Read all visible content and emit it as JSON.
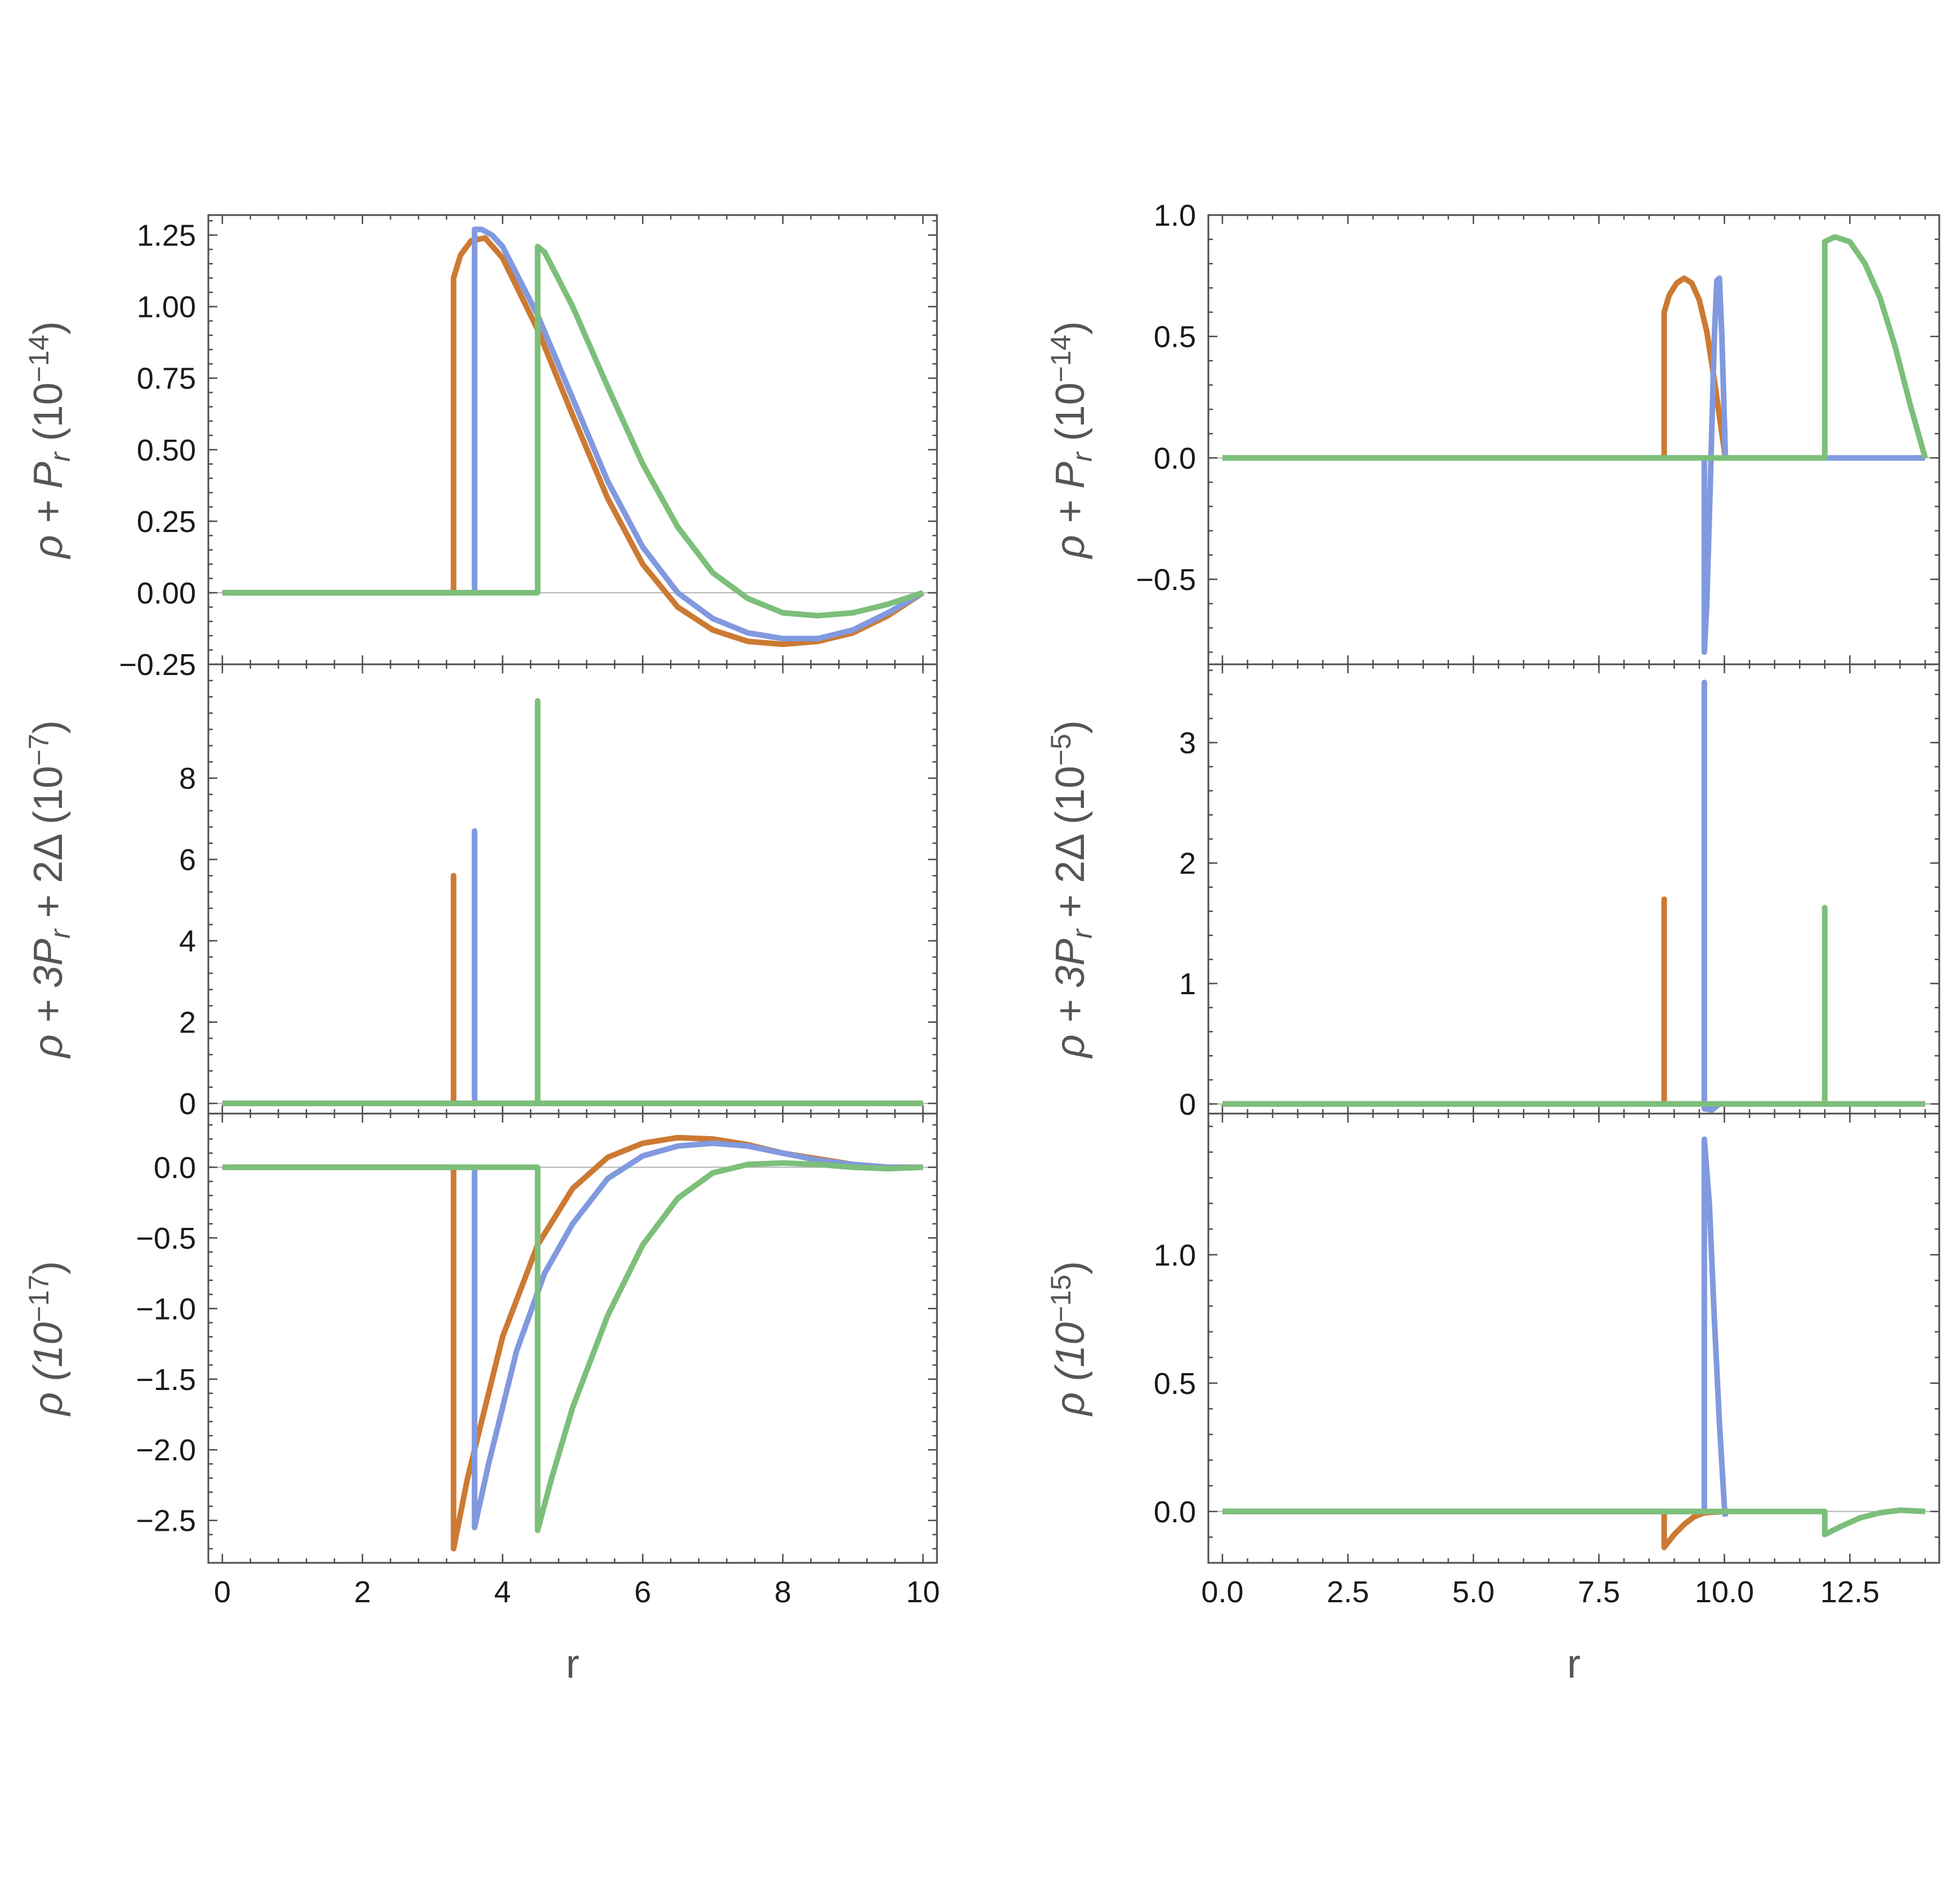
{
  "colors": {
    "series_1": "#cc7a33",
    "series_2": "#8199de",
    "series_3": "#7cbf7a"
  },
  "chart_data": [
    {
      "id": "left-top",
      "type": "line",
      "ylabel": "ρ + P_r (10^−14)",
      "xlim": [
        -0.2,
        10.2
      ],
      "ylim": [
        -0.25,
        1.32
      ],
      "xticks": [
        0,
        2,
        4,
        6,
        8,
        10
      ],
      "xticklabels": [
        "0",
        "2",
        "4",
        "6",
        "8",
        "10"
      ],
      "show_xticklabels": false,
      "yticks": [
        -0.25,
        0,
        0.25,
        0.5,
        0.75,
        1,
        1.25
      ],
      "yticklabels": [
        "−0.25",
        "0.00",
        "0.25",
        "0.50",
        "0.75",
        "1.00",
        "1.25"
      ],
      "series": [
        {
          "color": "series_1",
          "points": [
            [
              0,
              0
            ],
            [
              3.3,
              0
            ],
            [
              3.3,
              1.1
            ],
            [
              3.4,
              1.18
            ],
            [
              3.55,
              1.23
            ],
            [
              3.75,
              1.24
            ],
            [
              4.0,
              1.17
            ],
            [
              4.5,
              0.92
            ],
            [
              5,
              0.62
            ],
            [
              5.5,
              0.33
            ],
            [
              6,
              0.1
            ],
            [
              6.5,
              -0.05
            ],
            [
              7,
              -0.13
            ],
            [
              7.5,
              -0.17
            ],
            [
              8,
              -0.18
            ],
            [
              8.5,
              -0.17
            ],
            [
              9,
              -0.14
            ],
            [
              9.5,
              -0.08
            ],
            [
              10,
              0
            ]
          ]
        },
        {
          "color": "series_2",
          "points": [
            [
              0,
              0
            ],
            [
              3.6,
              0
            ],
            [
              3.6,
              1.27
            ],
            [
              3.7,
              1.27
            ],
            [
              3.85,
              1.25
            ],
            [
              4.0,
              1.21
            ],
            [
              4.5,
              0.97
            ],
            [
              5,
              0.68
            ],
            [
              5.5,
              0.39
            ],
            [
              6,
              0.16
            ],
            [
              6.5,
              0.0
            ],
            [
              7,
              -0.09
            ],
            [
              7.5,
              -0.14
            ],
            [
              8,
              -0.16
            ],
            [
              8.5,
              -0.16
            ],
            [
              9,
              -0.13
            ],
            [
              9.5,
              -0.07
            ],
            [
              10,
              0
            ]
          ]
        },
        {
          "color": "series_3",
          "points": [
            [
              0,
              0
            ],
            [
              4.5,
              0
            ],
            [
              4.5,
              1.21
            ],
            [
              4.6,
              1.19
            ],
            [
              5,
              1.0
            ],
            [
              5.5,
              0.72
            ],
            [
              6,
              0.45
            ],
            [
              6.5,
              0.23
            ],
            [
              7,
              0.07
            ],
            [
              7.5,
              -0.02
            ],
            [
              8,
              -0.07
            ],
            [
              8.5,
              -0.08
            ],
            [
              9,
              -0.07
            ],
            [
              9.5,
              -0.04
            ],
            [
              10,
              0
            ]
          ]
        }
      ]
    },
    {
      "id": "left-middle",
      "type": "line",
      "ylabel": "ρ + 3P_r + 2Δ (10^−7)",
      "xlim": [
        -0.2,
        10.2
      ],
      "ylim": [
        -0.25,
        10.8
      ],
      "xticks": [
        0,
        2,
        4,
        6,
        8,
        10
      ],
      "xticklabels": [
        "0",
        "2",
        "4",
        "6",
        "8",
        "10"
      ],
      "show_xticklabels": false,
      "yticks": [
        0,
        2,
        4,
        6,
        8
      ],
      "yticklabels": [
        "0",
        "2",
        "4",
        "6",
        "8"
      ],
      "series": [
        {
          "color": "series_1",
          "points": [
            [
              0,
              0
            ],
            [
              3.3,
              0
            ],
            [
              3.3,
              5.6
            ],
            [
              3.3,
              0
            ],
            [
              10,
              0
            ]
          ]
        },
        {
          "color": "series_2",
          "points": [
            [
              0,
              0
            ],
            [
              3.6,
              0
            ],
            [
              3.6,
              6.7
            ],
            [
              3.6,
              0
            ],
            [
              10,
              0
            ]
          ]
        },
        {
          "color": "series_3",
          "points": [
            [
              0,
              0
            ],
            [
              4.5,
              0
            ],
            [
              4.5,
              9.9
            ],
            [
              4.5,
              0
            ],
            [
              10,
              0
            ]
          ]
        }
      ]
    },
    {
      "id": "left-bottom",
      "type": "line",
      "ylabel": "ρ (10^−17)",
      "xlabel": "r",
      "xlim": [
        -0.2,
        10.2
      ],
      "ylim": [
        -2.8,
        0.38
      ],
      "xticks": [
        0,
        2,
        4,
        6,
        8,
        10
      ],
      "xticklabels": [
        "0",
        "2",
        "4",
        "6",
        "8",
        "10"
      ],
      "show_xticklabels": true,
      "yticks": [
        -2.5,
        -2,
        -1.5,
        -1,
        -0.5,
        0
      ],
      "yticklabels": [
        "−2.5",
        "−2.0",
        "−1.5",
        "−1.0",
        "−0.5",
        "0.0"
      ],
      "series": [
        {
          "color": "series_1",
          "points": [
            [
              0,
              0
            ],
            [
              3.3,
              0
            ],
            [
              3.3,
              -2.7
            ],
            [
              3.5,
              -2.2
            ],
            [
              4,
              -1.2
            ],
            [
              4.5,
              -0.55
            ],
            [
              5,
              -0.15
            ],
            [
              5.5,
              0.07
            ],
            [
              6,
              0.17
            ],
            [
              6.5,
              0.21
            ],
            [
              7,
              0.2
            ],
            [
              7.5,
              0.16
            ],
            [
              8,
              0.1
            ],
            [
              8.5,
              0.06
            ],
            [
              9,
              0.02
            ],
            [
              9.5,
              0
            ],
            [
              10,
              0
            ]
          ]
        },
        {
          "color": "series_2",
          "points": [
            [
              0,
              0
            ],
            [
              3.6,
              0
            ],
            [
              3.6,
              -2.55
            ],
            [
              3.8,
              -2.1
            ],
            [
              4.2,
              -1.3
            ],
            [
              4.6,
              -0.75
            ],
            [
              5,
              -0.4
            ],
            [
              5.5,
              -0.08
            ],
            [
              6,
              0.08
            ],
            [
              6.5,
              0.15
            ],
            [
              7,
              0.17
            ],
            [
              7.5,
              0.15
            ],
            [
              8,
              0.1
            ],
            [
              8.5,
              0.05
            ],
            [
              9,
              0.02
            ],
            [
              9.5,
              0
            ],
            [
              10,
              0
            ]
          ]
        },
        {
          "color": "series_3",
          "points": [
            [
              0,
              0
            ],
            [
              4.5,
              0
            ],
            [
              4.5,
              -2.57
            ],
            [
              4.7,
              -2.2
            ],
            [
              5,
              -1.7
            ],
            [
              5.5,
              -1.05
            ],
            [
              6,
              -0.55
            ],
            [
              6.5,
              -0.22
            ],
            [
              7,
              -0.04
            ],
            [
              7.5,
              0.02
            ],
            [
              8,
              0.03
            ],
            [
              8.5,
              0.02
            ],
            [
              9,
              0
            ],
            [
              9.5,
              -0.01
            ],
            [
              10,
              0
            ]
          ]
        }
      ]
    },
    {
      "id": "right-top",
      "type": "line",
      "ylabel": "ρ + P_r (10^−14)",
      "xlim": [
        -0.28,
        14.28
      ],
      "ylim": [
        -0.85,
        1.0
      ],
      "xticks": [
        0,
        2.5,
        5,
        7.5,
        10,
        12.5
      ],
      "xticklabels": [
        "0.0",
        "2.5",
        "5.0",
        "7.5",
        "10.0",
        "12.5"
      ],
      "show_xticklabels": false,
      "yticks": [
        -0.5,
        0,
        0.5,
        1
      ],
      "yticklabels": [
        "−0.5",
        "0.0",
        "0.5",
        "1.0"
      ],
      "series": [
        {
          "color": "series_1",
          "points": [
            [
              0,
              0
            ],
            [
              8.8,
              0
            ],
            [
              8.8,
              0.6
            ],
            [
              8.9,
              0.67
            ],
            [
              9.05,
              0.72
            ],
            [
              9.2,
              0.74
            ],
            [
              9.35,
              0.72
            ],
            [
              9.5,
              0.65
            ],
            [
              9.65,
              0.52
            ],
            [
              9.8,
              0.32
            ],
            [
              9.95,
              0.1
            ],
            [
              10.02,
              0
            ]
          ]
        },
        {
          "color": "series_2",
          "points": [
            [
              0,
              0
            ],
            [
              9.6,
              0
            ],
            [
              9.6,
              -0.8
            ],
            [
              9.65,
              -0.6
            ],
            [
              9.72,
              -0.1
            ],
            [
              9.8,
              0.5
            ],
            [
              9.85,
              0.73
            ],
            [
              9.9,
              0.74
            ],
            [
              9.95,
              0.5
            ],
            [
              10.0,
              0.15
            ],
            [
              10.02,
              0
            ],
            [
              14,
              0
            ]
          ]
        },
        {
          "color": "series_3",
          "points": [
            [
              0,
              0
            ],
            [
              12,
              0
            ],
            [
              12,
              0.89
            ],
            [
              12.2,
              0.91
            ],
            [
              12.5,
              0.89
            ],
            [
              12.8,
              0.8
            ],
            [
              13.1,
              0.66
            ],
            [
              13.4,
              0.46
            ],
            [
              13.7,
              0.22
            ],
            [
              14,
              0
            ]
          ]
        }
      ]
    },
    {
      "id": "right-middle",
      "type": "line",
      "ylabel": "ρ + 3P_r + 2Δ (10^−5)",
      "xlim": [
        -0.28,
        14.28
      ],
      "ylim": [
        -0.08,
        3.65
      ],
      "xticks": [
        0,
        2.5,
        5,
        7.5,
        10,
        12.5
      ],
      "xticklabels": [
        "0.0",
        "2.5",
        "5.0",
        "7.5",
        "10.0",
        "12.5"
      ],
      "show_xticklabels": false,
      "yticks": [
        0,
        1,
        2,
        3
      ],
      "yticklabels": [
        "0",
        "1",
        "2",
        "3"
      ],
      "series": [
        {
          "color": "series_1",
          "points": [
            [
              0,
              0
            ],
            [
              8.8,
              0
            ],
            [
              8.8,
              1.7
            ],
            [
              8.8,
              0
            ],
            [
              14,
              0
            ]
          ]
        },
        {
          "color": "series_2",
          "points": [
            [
              0,
              0
            ],
            [
              9.6,
              0
            ],
            [
              9.6,
              3.5
            ],
            [
              9.6,
              -0.04
            ],
            [
              9.75,
              -0.05
            ],
            [
              9.9,
              0.0
            ],
            [
              10.0,
              0
            ]
          ]
        },
        {
          "color": "series_3",
          "points": [
            [
              0,
              0
            ],
            [
              12,
              0
            ],
            [
              12,
              1.63
            ],
            [
              12,
              0
            ],
            [
              14,
              0
            ]
          ]
        }
      ]
    },
    {
      "id": "right-bottom",
      "type": "line",
      "ylabel": "ρ (10^−15)",
      "xlabel": "r",
      "xlim": [
        -0.28,
        14.28
      ],
      "ylim": [
        -0.2,
        1.55
      ],
      "xticks": [
        0,
        2.5,
        5,
        7.5,
        10,
        12.5
      ],
      "xticklabels": [
        "0.0",
        "2.5",
        "5.0",
        "7.5",
        "10.0",
        "12.5"
      ],
      "show_xticklabels": true,
      "yticks": [
        0,
        0.5,
        1
      ],
      "yticklabels": [
        "0.0",
        "0.5",
        "1.0"
      ],
      "series": [
        {
          "color": "series_1",
          "points": [
            [
              0,
              0
            ],
            [
              8.8,
              0
            ],
            [
              8.8,
              -0.14
            ],
            [
              9.0,
              -0.09
            ],
            [
              9.2,
              -0.05
            ],
            [
              9.4,
              -0.02
            ],
            [
              9.6,
              -0.005
            ],
            [
              10.0,
              0
            ]
          ]
        },
        {
          "color": "series_2",
          "points": [
            [
              0,
              0
            ],
            [
              9.6,
              0
            ],
            [
              9.6,
              1.45
            ],
            [
              9.7,
              1.2
            ],
            [
              9.8,
              0.75
            ],
            [
              9.9,
              0.35
            ],
            [
              10.0,
              0.02
            ],
            [
              10.02,
              -0.02
            ]
          ]
        },
        {
          "color": "series_3",
          "points": [
            [
              0,
              0
            ],
            [
              12,
              0
            ],
            [
              12,
              -0.09
            ],
            [
              12.3,
              -0.06
            ],
            [
              12.7,
              -0.025
            ],
            [
              13.1,
              -0.005
            ],
            [
              13.5,
              0.005
            ],
            [
              13.8,
              0.002
            ],
            [
              14,
              0
            ]
          ]
        }
      ]
    }
  ]
}
